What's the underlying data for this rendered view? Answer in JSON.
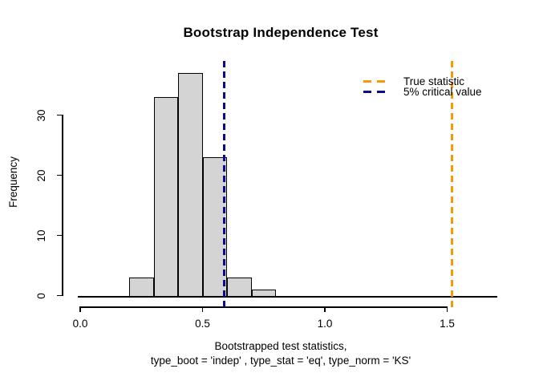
{
  "title": "Bootstrap Independence Test",
  "chart_data": {
    "type": "bar",
    "subtype": "histogram",
    "title": "Bootstrap Independence Test",
    "xlabel_line1": "Bootstrapped test statistics,",
    "xlabel_line2": "type_boot = 'indep' , type_stat = 'eq', type_norm = 'KS'",
    "ylabel": "Frequency",
    "bin_edges": [
      0.2,
      0.3,
      0.4,
      0.5,
      0.6,
      0.7,
      0.8
    ],
    "counts": [
      3,
      33,
      37,
      23,
      3,
      1
    ],
    "x_tick_labels": [
      "0.0",
      "0.5",
      "1.0",
      "1.5"
    ],
    "x_tick_values": [
      0,
      0.5,
      1.0,
      1.5
    ],
    "y_tick_labels": [
      "0",
      "10",
      "20",
      "30"
    ],
    "y_tick_values": [
      0,
      10,
      20,
      30
    ],
    "xlim": [
      -0.01,
      1.705
    ],
    "ylim": [
      0,
      38
    ],
    "grid": false,
    "bar_fill": "#D4D4D4",
    "bar_stroke": "#000000",
    "vlines": [
      {
        "id": "true-statistic",
        "value": 1.52,
        "color": "#F59B07",
        "style": "dashed",
        "label": "True statistic"
      },
      {
        "id": "critical-value",
        "value": 0.59,
        "color": "#0A0A8A",
        "style": "dashed",
        "label": "5% critical value"
      }
    ],
    "legend": {
      "position": "top-right",
      "items": [
        {
          "label": "True statistic",
          "color": "#F59B07"
        },
        {
          "label": "5% critical value",
          "color": "#0A0A8A"
        }
      ]
    }
  }
}
